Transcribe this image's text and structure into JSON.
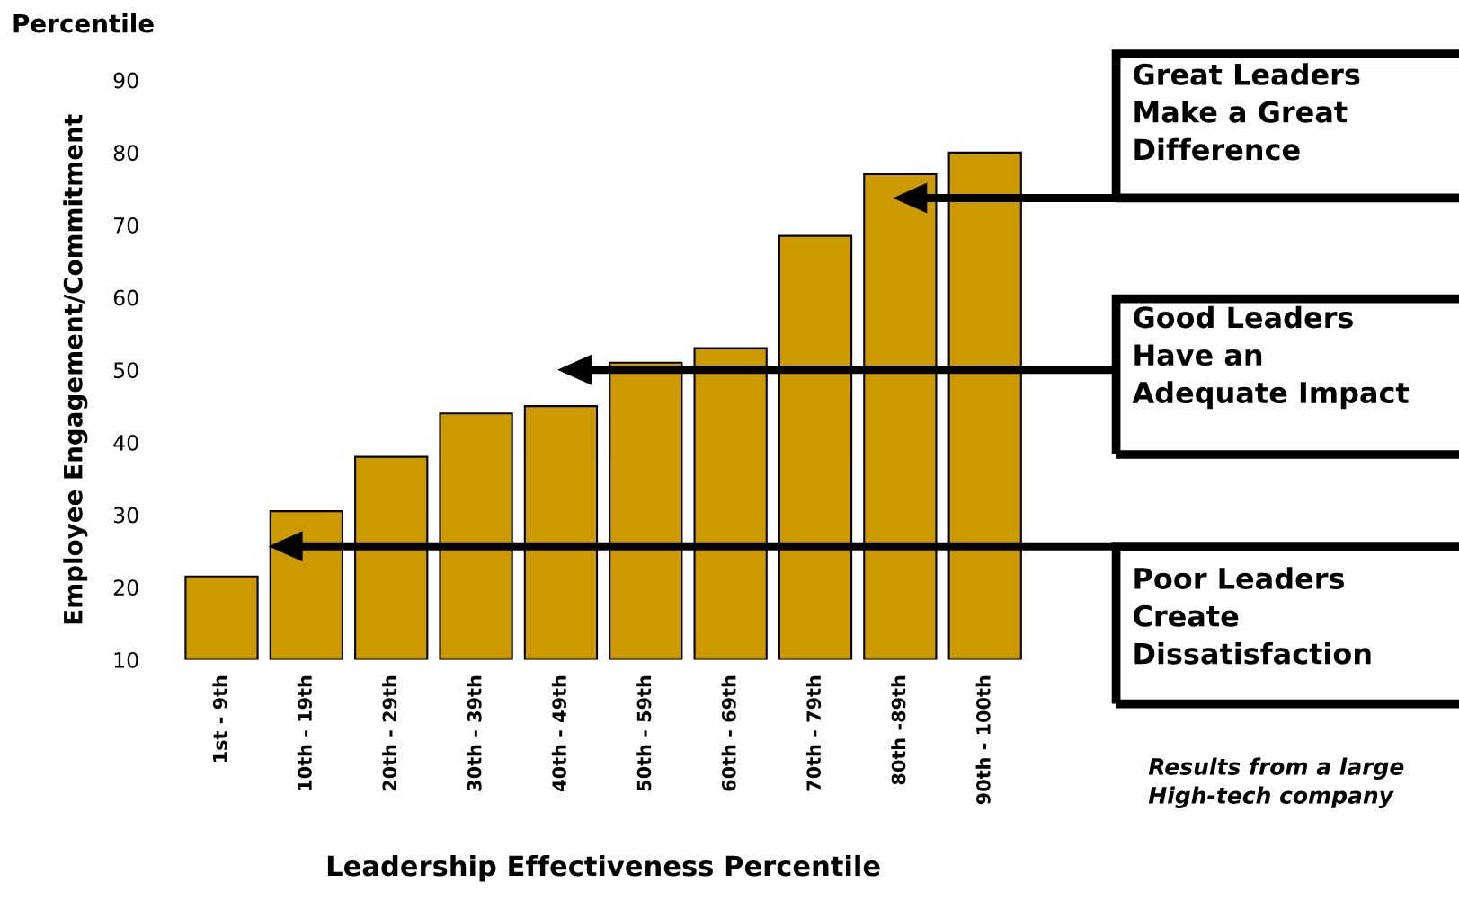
{
  "chart_data": {
    "type": "bar",
    "xlabel": "Leadership Effectiveness Percentile",
    "ylabel": "Employee Engagement/Commitment",
    "categories": [
      "1st - 9th",
      "10th - 19th",
      "20th - 29th",
      "30th - 39th",
      "40th - 49th",
      "50th - 59th",
      "60th - 69th",
      "70th - 79th",
      "80th -89th",
      "90th - 100th"
    ],
    "values": [
      21.5,
      30.5,
      38,
      44,
      45,
      51,
      53,
      68.5,
      77,
      80
    ],
    "color": "#cc9900",
    "ylim": [
      10,
      90
    ],
    "yticks": [
      10,
      20,
      30,
      40,
      50,
      60,
      70,
      80,
      90
    ],
    "grid": false,
    "annotations": [
      "Percentile",
      "Great Leaders\nMake a Great\nDifference",
      "Good Leaders\nHave an\nAdequate Impact",
      "Poor Leaders\nCreate\nDissatisfaction",
      "Results from a large\nHigh-tech company"
    ]
  }
}
